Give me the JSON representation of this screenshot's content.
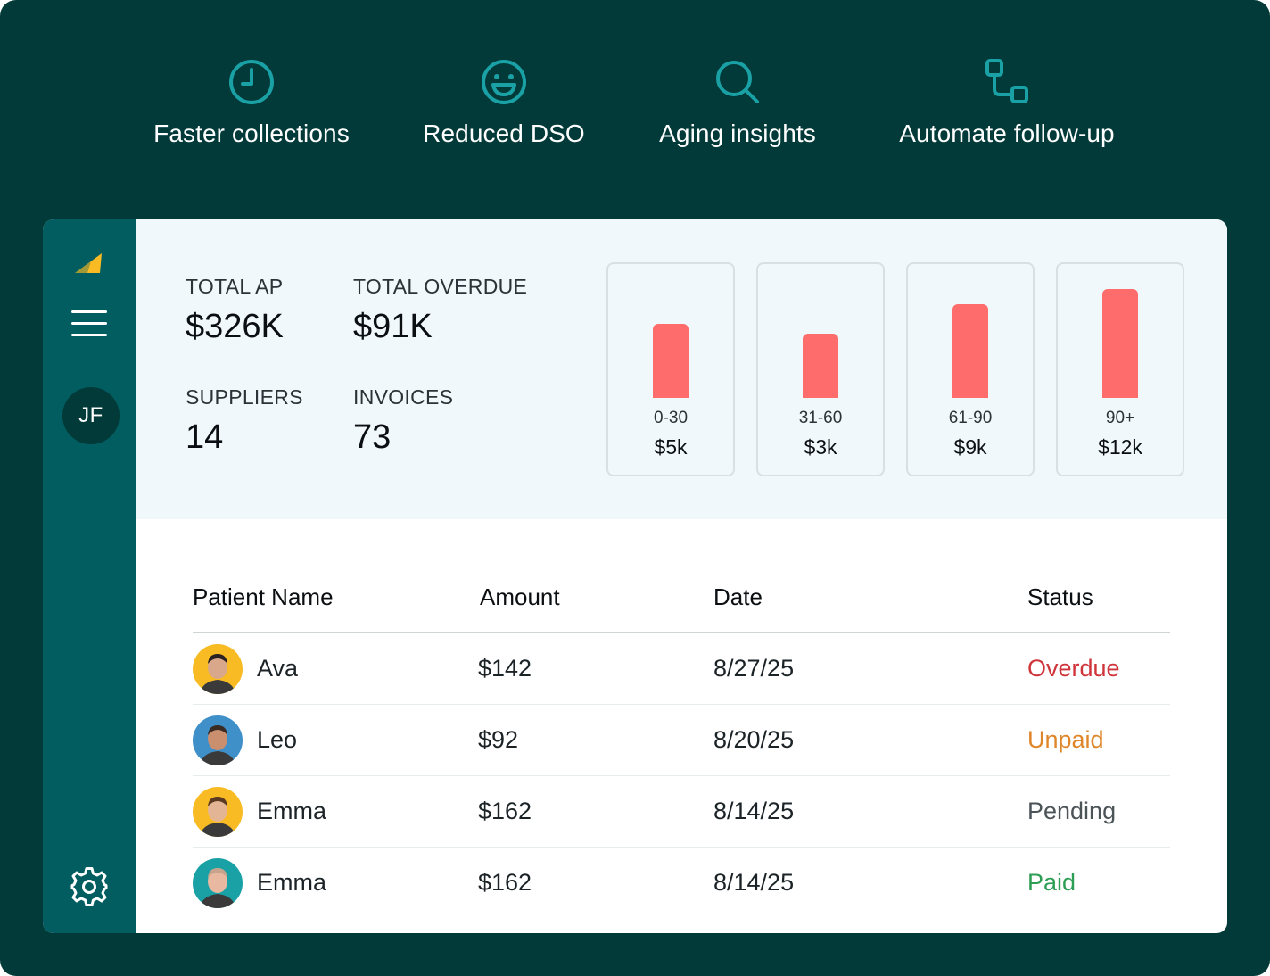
{
  "features": [
    {
      "icon": "clock-icon",
      "label": "Faster collections"
    },
    {
      "icon": "smile-icon",
      "label": "Reduced DSO"
    },
    {
      "icon": "search-icon",
      "label": "Aging insights"
    },
    {
      "icon": "workflow-icon",
      "label": "Automate follow-up"
    }
  ],
  "sidebar": {
    "avatar_initials": "JF",
    "icons": [
      "logo-icon",
      "hamburger-menu-icon",
      "gear-icon"
    ]
  },
  "stats": [
    {
      "label": "TOTAL AP",
      "value": "$326K"
    },
    {
      "label": "TOTAL OVERDUE",
      "value": "$91K"
    },
    {
      "label": "SUPPLIERS",
      "value": "14"
    },
    {
      "label": "INVOICES",
      "value": "73"
    }
  ],
  "chart_data": {
    "type": "bar",
    "categories": [
      "0-30",
      "31-60",
      "61-90",
      "90+"
    ],
    "values": [
      5,
      3,
      9,
      12
    ],
    "value_labels": [
      "$5k",
      "$3k",
      "$9k",
      "$12k"
    ],
    "bar_color": "#fe6d6c"
  },
  "table": {
    "headers": {
      "name": "Patient Name",
      "amount": "Amount",
      "date": "Date",
      "status": "Status"
    },
    "rows": [
      {
        "name": "Ava",
        "amount": "$142",
        "date": "8/27/25",
        "status": "Overdue",
        "status_color": "#d0343b",
        "avatar_bg": "#f8bb24"
      },
      {
        "name": "Leo",
        "amount": "$92",
        "date": "8/20/25",
        "status": "Unpaid",
        "status_color": "#e0862a",
        "avatar_bg": "#3f8fc9"
      },
      {
        "name": "Emma",
        "amount": "$162",
        "date": "8/14/25",
        "status": "Pending",
        "status_color": "#4c5458",
        "avatar_bg": "#f8bb24"
      },
      {
        "name": "Emma",
        "amount": "$162",
        "date": "8/14/25",
        "status": "Paid",
        "status_color": "#2e9e55",
        "avatar_bg": "#1aa1a6"
      }
    ]
  },
  "colors": {
    "background": "#013a38",
    "sidebar": "#015d5f",
    "accent_icons": "#1aa1a6",
    "logo": "#f8bb24"
  }
}
